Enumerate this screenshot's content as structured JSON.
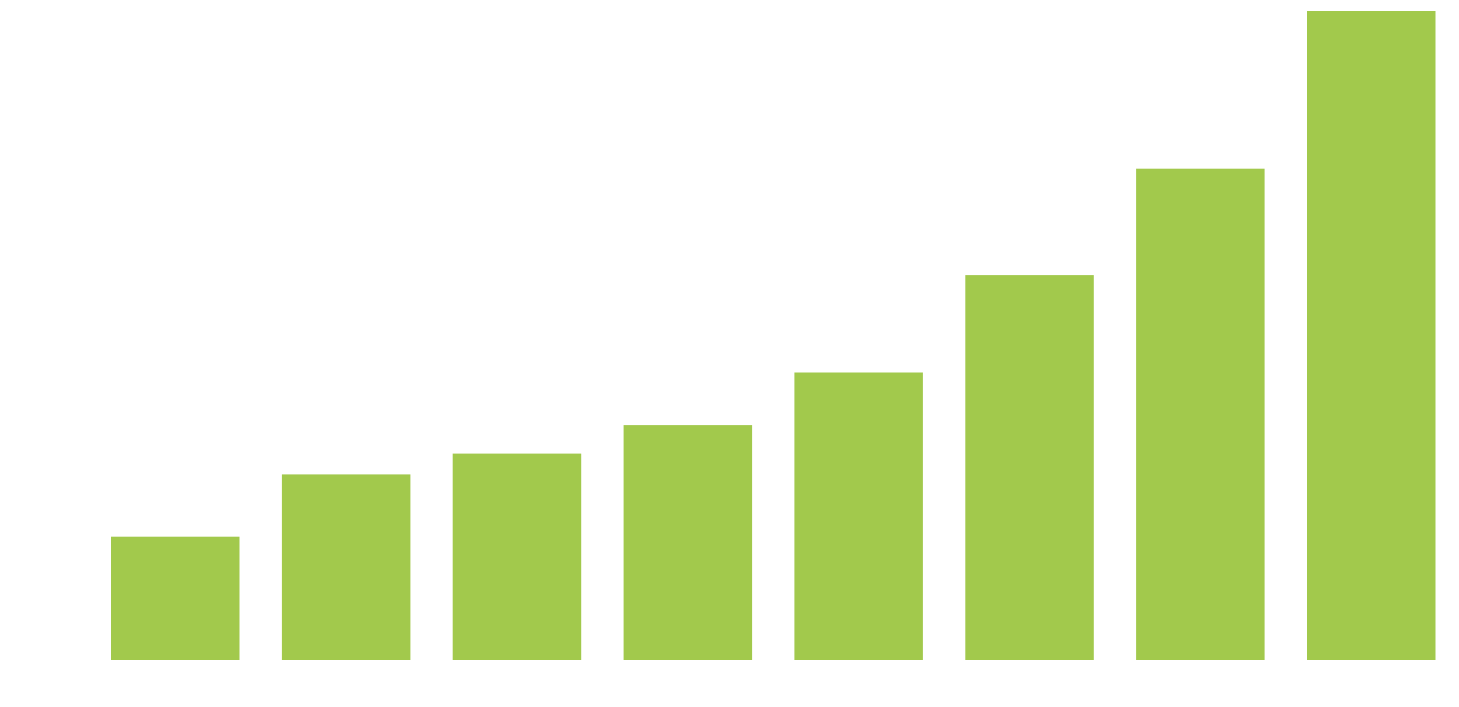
{
  "chart_data": {
    "type": "bar",
    "categories": [
      "",
      "",
      "",
      "",
      "",
      "",
      "",
      ""
    ],
    "values": [
      19,
      28.6,
      31.8,
      36.2,
      44.3,
      59.3,
      75.7,
      100
    ],
    "ylim": [
      0,
      100
    ],
    "grid": false,
    "legend": "none",
    "bar_color": "#a2c94c"
  }
}
